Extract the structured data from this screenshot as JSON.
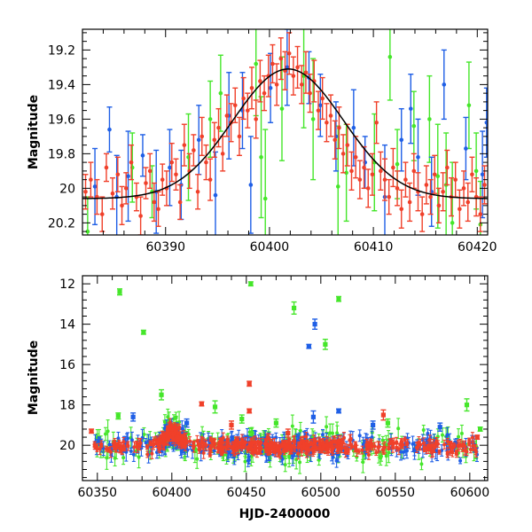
{
  "chart_data": [
    {
      "type": "scatter",
      "panel": "top",
      "xlabel": "",
      "ylabel": "Magnitude",
      "xlim": [
        60382,
        60421
      ],
      "ylim": [
        19.08,
        20.27
      ],
      "y_inverted": true,
      "xticks": [
        60390,
        60400,
        60410,
        60420
      ],
      "yticks": [
        19.2,
        19.4,
        19.6,
        19.8,
        20,
        20.2
      ],
      "ytick_labels": [
        "19.2",
        "19.4",
        "19.6",
        "19.8",
        "20",
        "20.2"
      ],
      "grid": false,
      "colors": {
        "red": "#f0402a",
        "green": "#45e62a",
        "blue": "#1f5fe6",
        "model": "#000000"
      },
      "model_curve": {
        "name": "",
        "style": "black curve",
        "peak_x": 60401.8,
        "peak_mag": 19.31,
        "baseline_mag": 20.06,
        "width_days": 5.3
      },
      "series": [
        {
          "color": "blue",
          "points": [
            [
              60383.2,
              19.99,
              0.22
            ],
            [
              60384.6,
              19.66,
              0.13
            ],
            [
              60385.3,
              20.05,
              0.24
            ],
            [
              60386.4,
              19.93,
              0.26
            ],
            [
              60387.8,
              19.81,
              0.12
            ],
            [
              60389.1,
              20.02,
              0.24
            ],
            [
              60390.4,
              19.88,
              0.22
            ],
            [
              60391.5,
              19.98,
              0.2
            ],
            [
              60393.2,
              19.72,
              0.2
            ],
            [
              60394.8,
              20.04,
              0.25
            ],
            [
              60396.1,
              19.58,
              0.25
            ],
            [
              60397.4,
              19.55,
              0.22
            ],
            [
              60398.2,
              19.98,
              0.28
            ],
            [
              60400.1,
              19.42,
              0.2
            ],
            [
              60401.7,
              19.3,
              0.22
            ],
            [
              60403.8,
              19.36,
              0.15
            ],
            [
              60404.9,
              19.52,
              0.18
            ],
            [
              60406.4,
              19.7,
              0.2
            ],
            [
              60408.1,
              19.65,
              0.22
            ],
            [
              60409.2,
              19.85,
              0.15
            ],
            [
              60411.1,
              20.05,
              0.3
            ],
            [
              60412.7,
              19.72,
              0.18
            ],
            [
              60413.6,
              19.54,
              0.2
            ],
            [
              60414.3,
              19.82,
              0.22
            ],
            [
              60415.6,
              20.02,
              0.2
            ],
            [
              60416.8,
              19.4,
              0.2
            ],
            [
              60418.9,
              19.77,
              0.18
            ],
            [
              60420.5,
              19.92,
              0.25
            ],
            [
              60420.9,
              19.62,
              0.2
            ]
          ]
        },
        {
          "color": "green",
          "points": [
            [
              60382.5,
              20.25,
              0.2
            ],
            [
              60386.8,
              19.88,
              0.2
            ],
            [
              60388.7,
              20.02,
              0.15
            ],
            [
              60392.2,
              19.82,
              0.25
            ],
            [
              60394.3,
              19.6,
              0.22
            ],
            [
              60395.3,
              19.45,
              0.22
            ],
            [
              60398.7,
              19.28,
              0.3
            ],
            [
              60399.2,
              19.82,
              0.35
            ],
            [
              60399.6,
              20.06,
              0.4
            ],
            [
              60401.2,
              19.54,
              0.3
            ],
            [
              60403.3,
              19.35,
              0.3
            ],
            [
              60404.2,
              19.6,
              0.35
            ],
            [
              60406.6,
              19.99,
              0.35
            ],
            [
              60407.4,
              19.91,
              0.28
            ],
            [
              60410.1,
              19.85,
              0.28
            ],
            [
              60411.6,
              19.24,
              0.25
            ],
            [
              60412.3,
              19.86,
              0.2
            ],
            [
              60413.9,
              19.64,
              0.2
            ],
            [
              60415.4,
              19.6,
              0.25
            ],
            [
              60416.2,
              19.93,
              0.3
            ],
            [
              60417.0,
              19.98,
              0.3
            ],
            [
              60417.6,
              20.2,
              0.35
            ],
            [
              60419.2,
              19.52,
              0.25
            ],
            [
              60419.9,
              19.9,
              0.22
            ],
            [
              60420.3,
              20.21,
              0.25
            ]
          ]
        },
        {
          "color": "red",
          "points": [
            [
              60382.3,
              20.02,
              0.1
            ],
            [
              60382.8,
              19.95,
              0.1
            ],
            [
              60383.4,
              20.05,
              0.1
            ],
            [
              60383.9,
              20.15,
              0.1
            ],
            [
              60384.3,
              19.88,
              0.08
            ],
            [
              60384.9,
              20.03,
              0.09
            ],
            [
              60385.4,
              19.92,
              0.1
            ],
            [
              60385.8,
              20.1,
              0.11
            ],
            [
              60386.2,
              20.0,
              0.09
            ],
            [
              60386.7,
              19.85,
              0.1
            ],
            [
              60387.2,
              20.05,
              0.08
            ],
            [
              60387.6,
              20.16,
              0.11
            ],
            [
              60388.1,
              19.97,
              0.09
            ],
            [
              60388.5,
              19.9,
              0.1
            ],
            [
              60388.9,
              20.08,
              0.11
            ],
            [
              60389.3,
              20.12,
              0.1
            ],
            [
              60389.7,
              19.95,
              0.09
            ],
            [
              60390.1,
              20.0,
              0.1
            ],
            [
              60390.6,
              19.85,
              0.11
            ],
            [
              60391.0,
              19.92,
              0.09
            ],
            [
              60391.4,
              20.08,
              0.1
            ],
            [
              60391.8,
              19.75,
              0.12
            ],
            [
              60392.3,
              19.9,
              0.1
            ],
            [
              60392.7,
              19.78,
              0.09
            ],
            [
              60393.1,
              20.02,
              0.1
            ],
            [
              60393.5,
              19.7,
              0.11
            ],
            [
              60393.9,
              19.85,
              0.1
            ],
            [
              60394.3,
              19.95,
              0.12
            ],
            [
              60394.7,
              19.72,
              0.1
            ],
            [
              60395.1,
              19.65,
              0.11
            ],
            [
              60395.5,
              19.8,
              0.1
            ],
            [
              60395.9,
              19.58,
              0.12
            ],
            [
              60396.3,
              19.62,
              0.11
            ],
            [
              60396.7,
              19.52,
              0.1
            ],
            [
              60397.1,
              19.7,
              0.11
            ],
            [
              60397.5,
              19.48,
              0.12
            ],
            [
              60397.9,
              19.55,
              0.1
            ],
            [
              60398.3,
              19.42,
              0.12
            ],
            [
              60398.7,
              19.6,
              0.11
            ],
            [
              60399.1,
              19.38,
              0.12
            ],
            [
              60399.5,
              19.45,
              0.1
            ],
            [
              60399.9,
              19.35,
              0.12
            ],
            [
              60400.3,
              19.28,
              0.11
            ],
            [
              60400.7,
              19.4,
              0.12
            ],
            [
              60401.1,
              19.25,
              0.12
            ],
            [
              60401.5,
              19.32,
              0.11
            ],
            [
              60401.9,
              19.22,
              0.12
            ],
            [
              60402.3,
              19.35,
              0.11
            ],
            [
              60402.7,
              19.3,
              0.12
            ],
            [
              60403.1,
              19.4,
              0.11
            ],
            [
              60403.5,
              19.33,
              0.12
            ],
            [
              60403.9,
              19.45,
              0.11
            ],
            [
              60404.3,
              19.38,
              0.12
            ],
            [
              60404.7,
              19.55,
              0.11
            ],
            [
              60405.1,
              19.48,
              0.12
            ],
            [
              60405.5,
              19.62,
              0.11
            ],
            [
              60405.9,
              19.58,
              0.12
            ],
            [
              60406.3,
              19.72,
              0.11
            ],
            [
              60406.7,
              19.65,
              0.12
            ],
            [
              60407.1,
              19.8,
              0.11
            ],
            [
              60407.5,
              19.75,
              0.12
            ],
            [
              60407.9,
              19.9,
              0.11
            ],
            [
              60408.3,
              19.82,
              0.12
            ],
            [
              60408.7,
              19.95,
              0.11
            ],
            [
              60409.1,
              19.88,
              0.12
            ],
            [
              60409.5,
              20.0,
              0.11
            ],
            [
              60409.9,
              19.92,
              0.12
            ],
            [
              60410.3,
              19.62,
              0.12
            ],
            [
              60410.7,
              19.9,
              0.11
            ],
            [
              60411.1,
              19.95,
              0.12
            ],
            [
              60411.5,
              20.05,
              0.1
            ],
            [
              60411.9,
              19.88,
              0.11
            ],
            [
              60412.3,
              20.0,
              0.1
            ],
            [
              60412.7,
              20.12,
              0.11
            ],
            [
              60413.1,
              19.95,
              0.1
            ],
            [
              60413.5,
              20.08,
              0.11
            ],
            [
              60413.9,
              19.9,
              0.1
            ],
            [
              60414.3,
              20.02,
              0.11
            ],
            [
              60414.7,
              20.15,
              0.1
            ],
            [
              60415.1,
              19.98,
              0.11
            ],
            [
              60415.5,
              20.05,
              0.1
            ],
            [
              60415.9,
              19.92,
              0.11
            ],
            [
              60416.3,
              20.1,
              0.1
            ],
            [
              60416.7,
              20.02,
              0.11
            ],
            [
              60417.1,
              19.88,
              0.1
            ],
            [
              60417.5,
              20.05,
              0.11
            ],
            [
              60417.9,
              19.95,
              0.1
            ],
            [
              60418.3,
              20.12,
              0.11
            ],
            [
              60418.7,
              20.0,
              0.1
            ],
            [
              60419.1,
              20.08,
              0.11
            ],
            [
              60419.5,
              19.92,
              0.1
            ],
            [
              60419.9,
              20.05,
              0.11
            ],
            [
              60420.3,
              20.15,
              0.1
            ],
            [
              60420.7,
              19.98,
              0.11
            ]
          ]
        }
      ]
    },
    {
      "type": "scatter",
      "panel": "bottom",
      "xlabel": "HJD-2400000",
      "ylabel": "Magnitude",
      "xlim": [
        60340,
        60612
      ],
      "ylim": [
        11.6,
        21.75
      ],
      "y_inverted": true,
      "xticks": [
        60350,
        60400,
        60450,
        60500,
        60550,
        60600
      ],
      "yticks": [
        12,
        14,
        16,
        18,
        20
      ],
      "ytick_labels": [
        "12",
        "14",
        "16",
        "18",
        "20"
      ],
      "grid": false,
      "colors": {
        "red": "#f0402a",
        "green": "#45e62a",
        "blue": "#1f5fe6"
      },
      "outliers": {
        "green": [
          [
            60365,
            12.4,
            0.15
          ],
          [
            60381,
            14.4,
            0.1
          ],
          [
            60453,
            12.0,
            0.1
          ],
          [
            60482,
            13.2,
            0.3
          ],
          [
            60503,
            15.0,
            0.25
          ],
          [
            60512,
            12.75,
            0.12
          ],
          [
            60364,
            18.55,
            0.15
          ],
          [
            60393,
            17.5,
            0.25
          ],
          [
            60429,
            18.1,
            0.3
          ],
          [
            60598,
            18.0,
            0.3
          ],
          [
            60607,
            19.2,
            0.1
          ],
          [
            60447,
            18.7,
            0.2
          ],
          [
            60470,
            18.9,
            0.2
          ],
          [
            60545,
            18.9,
            0.2
          ]
        ],
        "blue": [
          [
            60496,
            14.0,
            0.25
          ],
          [
            60492,
            15.1,
            0.1
          ],
          [
            60512,
            18.3,
            0.1
          ],
          [
            60374,
            18.6,
            0.2
          ],
          [
            60495,
            18.6,
            0.3
          ],
          [
            60535,
            19.0,
            0.2
          ],
          [
            60580,
            19.1,
            0.2
          ],
          [
            60410,
            18.9,
            0.2
          ]
        ],
        "red": [
          [
            60452,
            16.95,
            0.12
          ],
          [
            60420,
            17.95,
            0.1
          ],
          [
            60452,
            18.3,
            0.1
          ],
          [
            60346,
            19.3,
            0.1
          ],
          [
            60542,
            18.5,
            0.25
          ],
          [
            60605,
            19.6,
            0.1
          ],
          [
            60440,
            19.0,
            0.2
          ],
          [
            60478,
            19.4,
            0.2
          ]
        ]
      },
      "baseline_magnitude": 20.05,
      "baseline_bump": {
        "center": 60400,
        "peak_mag": 19.31,
        "width_days": 5
      },
      "dense_sampling_note": ""
    }
  ]
}
